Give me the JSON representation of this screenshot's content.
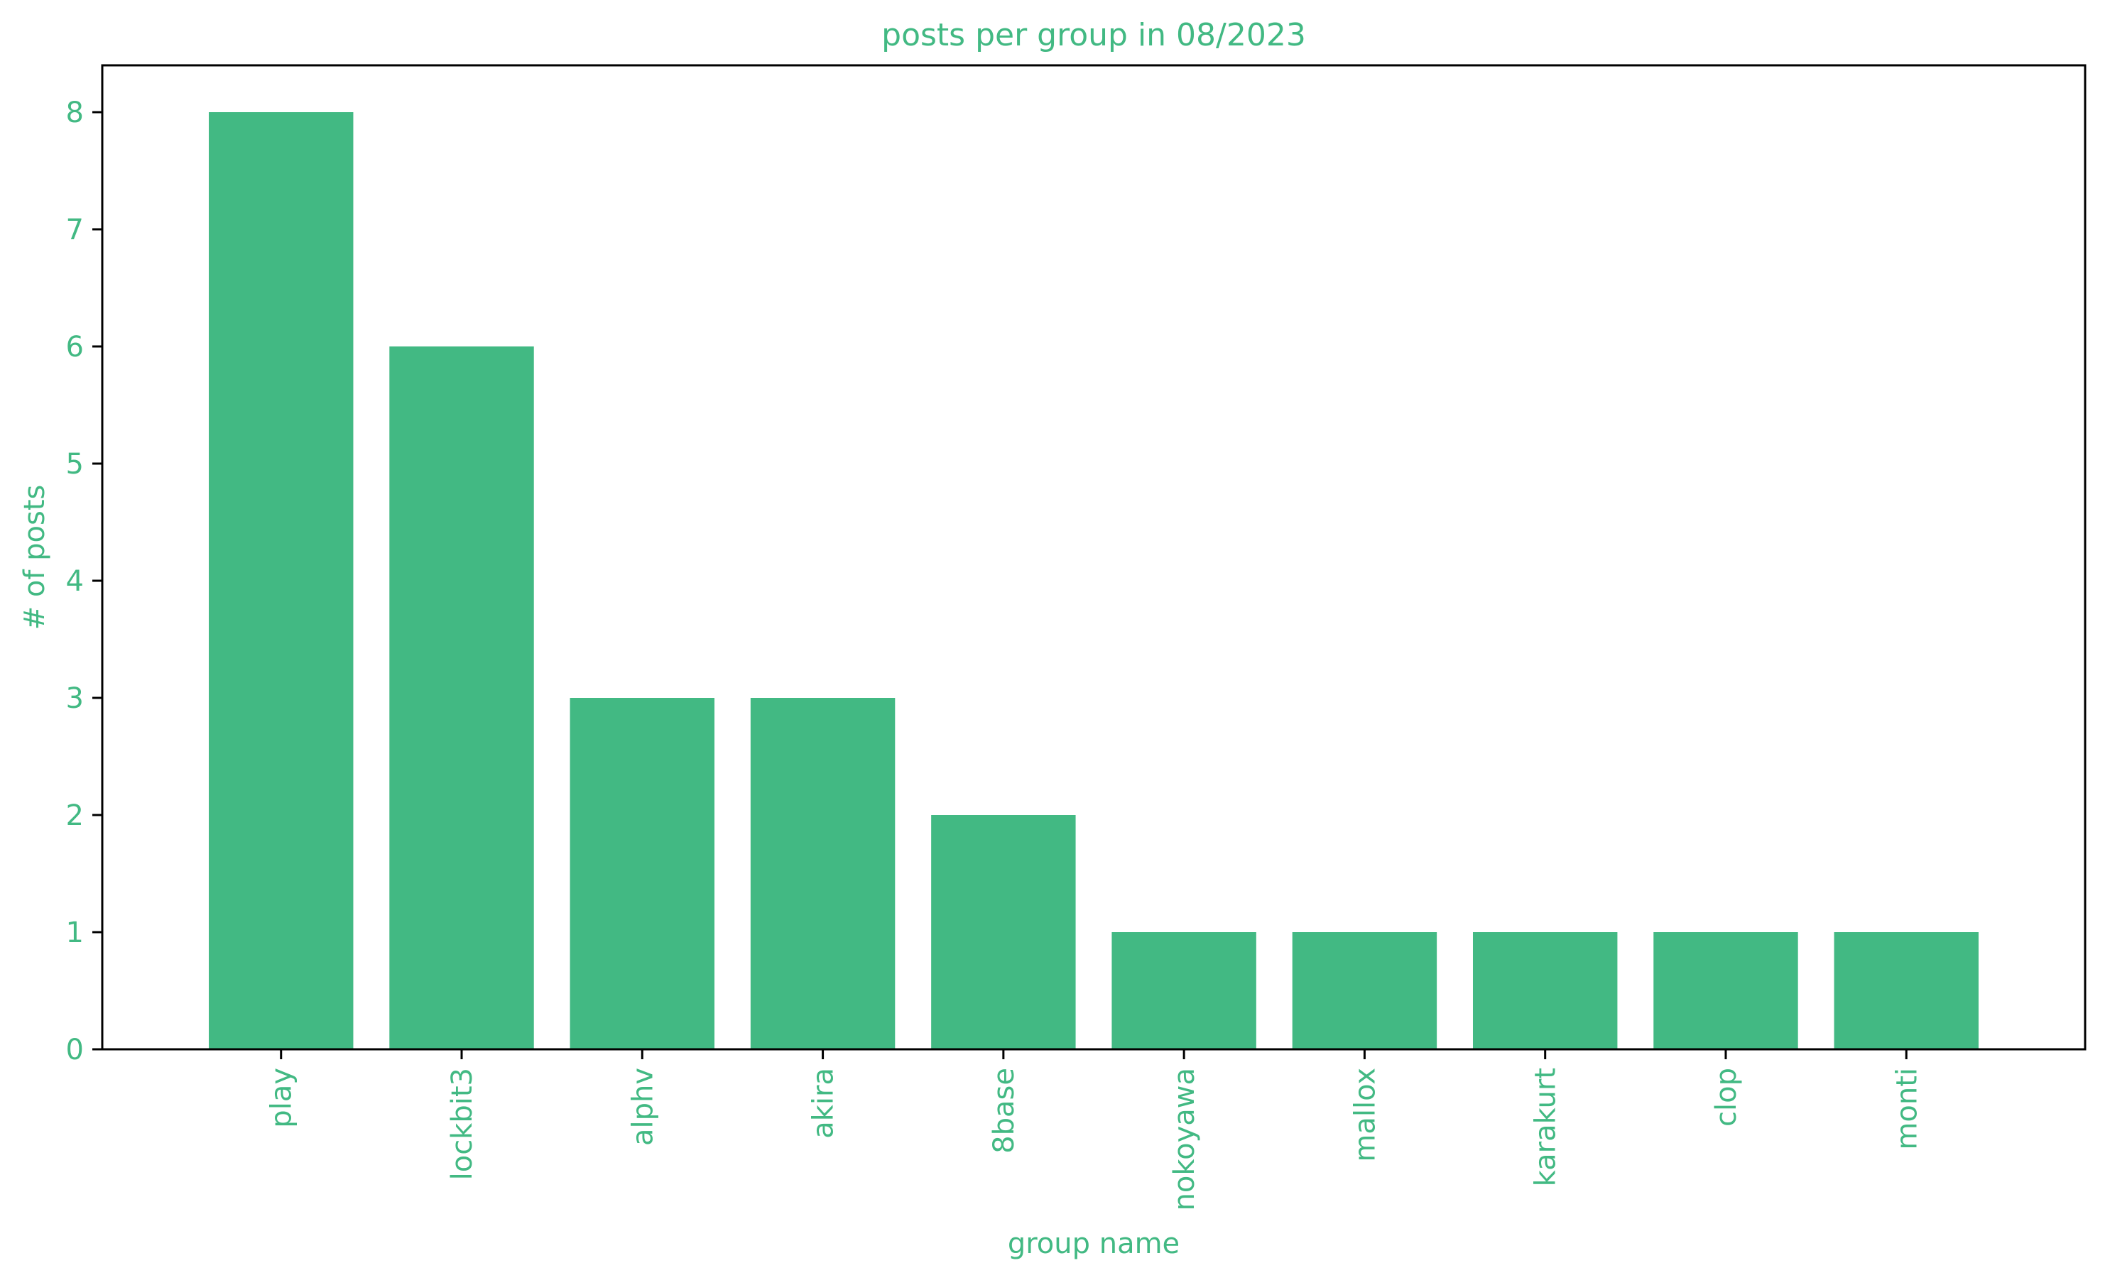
{
  "chart_data": {
    "type": "bar",
    "title": "posts per group in 08/2023",
    "xlabel": "group name",
    "ylabel": "# of posts",
    "categories": [
      "play",
      "lockbit3",
      "alphv",
      "akira",
      "8base",
      "nokoyawa",
      "mallox",
      "karakurt",
      "clop",
      "monti"
    ],
    "values": [
      8,
      6,
      3,
      3,
      2,
      1,
      1,
      1,
      1,
      1
    ],
    "ylim": [
      0,
      8.4
    ],
    "yticks": [
      0,
      1,
      2,
      3,
      4,
      5,
      6,
      7,
      8
    ],
    "grid": false,
    "legend": "none",
    "x_tick_rotation": "vertical"
  },
  "colors": {
    "bar": "#42b983",
    "text": "#42b983",
    "axis": "#000000",
    "background": "#ffffff"
  }
}
